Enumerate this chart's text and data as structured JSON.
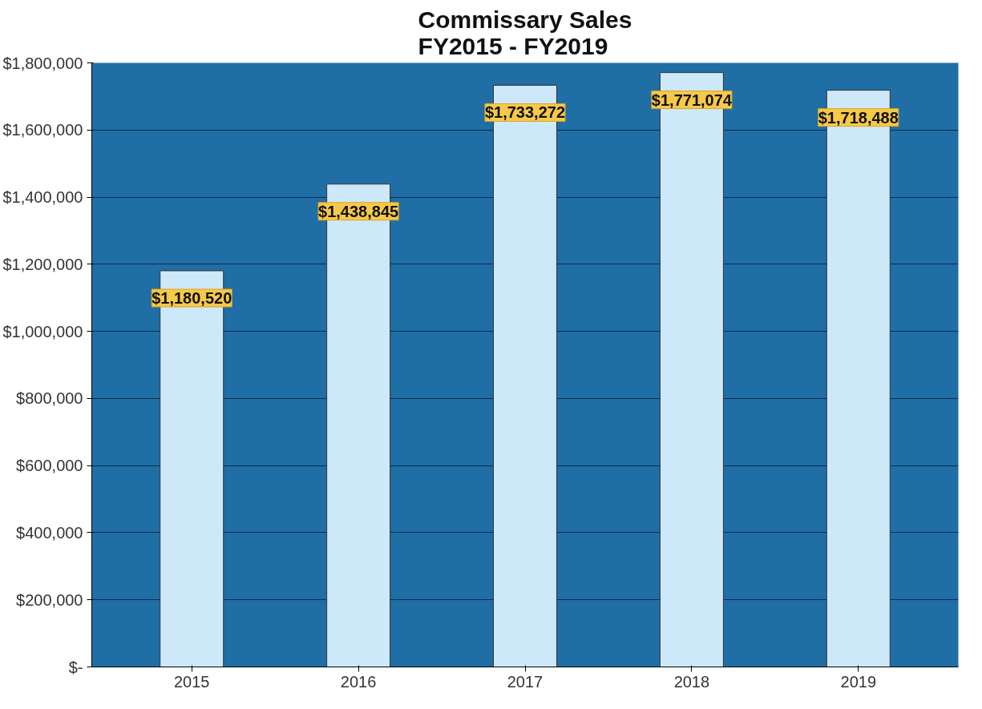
{
  "chart_data": {
    "type": "bar",
    "title": "Commissary Sales\nFY2015 - FY2019",
    "categories": [
      "2015",
      "2016",
      "2017",
      "2018",
      "2019"
    ],
    "values": [
      1180520,
      1438845,
      1733272,
      1771074,
      1718488
    ],
    "value_labels": [
      "$1,180,520",
      "$1,438,845",
      "$1,733,272",
      "$1,771,074",
      "$1,718,488"
    ],
    "color": "#cde9f9",
    "ylim": [
      0,
      1800000
    ],
    "yticks": [
      {
        "value": 0,
        "label": "$-"
      },
      {
        "value": 200000,
        "label": "$200,000"
      },
      {
        "value": 400000,
        "label": "$400,000"
      },
      {
        "value": 600000,
        "label": "$600,000"
      },
      {
        "value": 800000,
        "label": "$800,000"
      },
      {
        "value": 1000000,
        "label": "$1,000,000"
      },
      {
        "value": 1200000,
        "label": "$1,200,000"
      },
      {
        "value": 1400000,
        "label": "$1,400,000"
      },
      {
        "value": 1600000,
        "label": "$1,600,000"
      },
      {
        "value": 1800000,
        "label": "$1,800,000"
      }
    ],
    "grid": "y"
  }
}
